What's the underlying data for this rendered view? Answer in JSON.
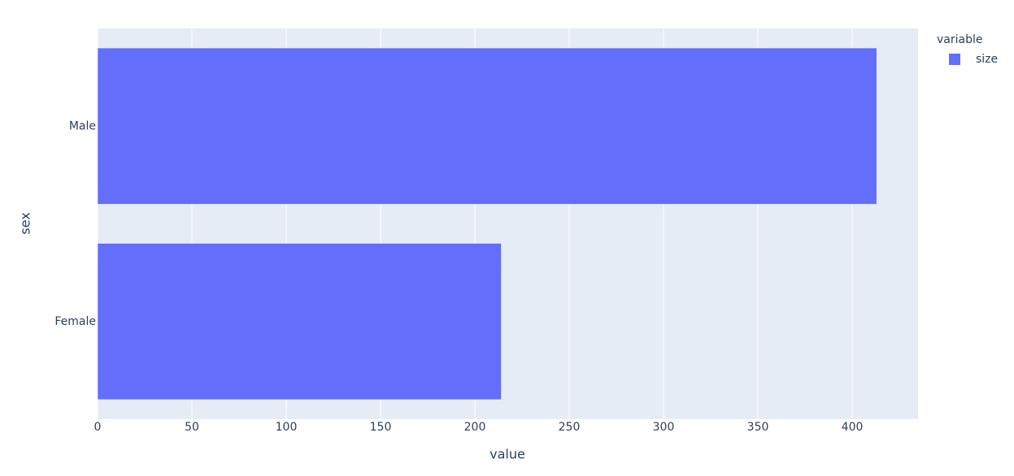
{
  "chart_data": {
    "type": "hbar",
    "x_label": "value",
    "y_label": "sex",
    "categories": [
      "Female",
      "Male"
    ],
    "series": [
      {
        "name": "size",
        "color": "#636efa",
        "values": [
          214,
          413
        ]
      }
    ],
    "legend_title": "variable",
    "xlim": [
      0,
      434.9
    ],
    "xticks": [
      0,
      50,
      100,
      150,
      200,
      250,
      300,
      350,
      400
    ],
    "grid": true,
    "legend": "right"
  }
}
